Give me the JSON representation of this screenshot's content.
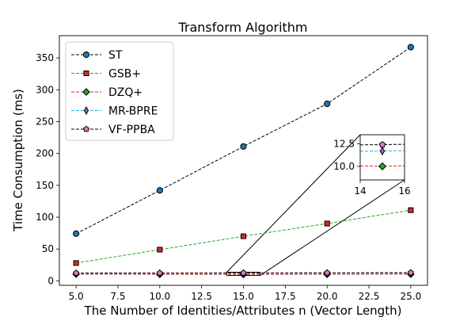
{
  "chart_data": {
    "type": "line",
    "title": "Transform Algorithm",
    "xlabel": "The Number of Identities/Attributes n (Vector Length)",
    "ylabel": "Time Consumption (ms)",
    "x": [
      5,
      10,
      15,
      20,
      25
    ],
    "xlim": [
      4.0,
      26.0
    ],
    "ylim": [
      -7,
      385
    ],
    "xticks": [
      "5.0",
      "7.5",
      "10.0",
      "12.5",
      "15.0",
      "17.5",
      "20.0",
      "22.5",
      "25.0"
    ],
    "yticks": [
      "0",
      "50",
      "100",
      "150",
      "200",
      "250",
      "300",
      "350"
    ],
    "grid": false,
    "legend_position": "top-left",
    "series": [
      {
        "name": "ST",
        "values": [
          74,
          142,
          211,
          278,
          367
        ],
        "color": "#000000",
        "marker": "circle",
        "marker_fill": "#1f77b4"
      },
      {
        "name": "GSB+",
        "values": [
          28,
          49,
          70,
          90,
          111
        ],
        "color": "#2ca02c",
        "marker": "square",
        "marker_fill": "#d62728"
      },
      {
        "name": "DZQ+",
        "values": [
          10.5,
          10.2,
          10.0,
          10.3,
          10.4
        ],
        "color": "#d62728",
        "marker": "diamond",
        "marker_fill": "#2ca02c"
      },
      {
        "name": "MR-BPRE",
        "values": [
          11.5,
          11.6,
          11.7,
          11.9,
          12.0
        ],
        "color": "#17becf",
        "marker": "thin-diamond",
        "marker_fill": "#9467bd"
      },
      {
        "name": "VF-PPBA",
        "values": [
          12.2,
          12.3,
          12.4,
          12.6,
          12.8
        ],
        "color": "#000000",
        "marker": "pentagon",
        "marker_fill": "#e377c2"
      }
    ],
    "inset": {
      "xlim": [
        14,
        16
      ],
      "ylim": [
        8.5,
        13.5
      ],
      "xticks": [
        "14",
        "16"
      ],
      "yticks": [
        "10.0",
        "12.5"
      ]
    }
  }
}
